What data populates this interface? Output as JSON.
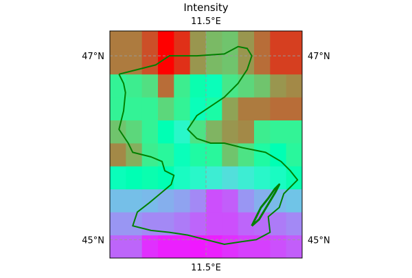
{
  "title": "Intensity",
  "chart_data": {
    "type": "heatmap",
    "title": "Intensity",
    "colormap": "rainbow",
    "value_range": [
      0,
      1
    ],
    "x_ticks": [
      {
        "value": 11.5,
        "label": "11.5°E"
      }
    ],
    "y_ticks": [
      {
        "value": 47,
        "label": "47°N"
      },
      {
        "value": 45,
        "label": "45°N"
      }
    ],
    "grid": "dashed gray",
    "extent": {
      "lon": [
        10.45,
        12.55
      ],
      "lat": [
        44.8,
        47.27
      ]
    },
    "cells": {
      "lon_edges": [
        10.45,
        10.625,
        10.8,
        10.975,
        11.15,
        11.325,
        11.5,
        11.675,
        11.85,
        12.025,
        12.2,
        12.375,
        12.55
      ],
      "lat_edges": [
        44.8,
        45.05,
        45.3,
        45.55,
        45.8,
        46.05,
        46.3,
        46.55,
        46.8,
        47.05,
        47.27
      ],
      "values": [
        [
          0.13,
          0.13,
          0.06,
          0.04,
          0.04,
          0.03,
          0.04,
          0.06,
          0.08,
          0.08,
          0.1,
          0.12
        ],
        [
          0.2,
          0.2,
          0.18,
          0.18,
          0.16,
          0.13,
          0.1,
          0.1,
          0.13,
          0.14,
          0.16,
          0.18
        ],
        [
          0.27,
          0.27,
          0.26,
          0.24,
          0.22,
          0.18,
          0.1,
          0.12,
          0.2,
          0.24,
          0.26,
          0.28
        ],
        [
          0.48,
          0.5,
          0.52,
          0.5,
          0.45,
          0.42,
          0.38,
          0.34,
          0.38,
          0.42,
          0.45,
          0.52
        ],
        [
          0.82,
          0.76,
          0.62,
          0.58,
          0.48,
          0.56,
          0.58,
          0.72,
          0.65,
          0.56,
          0.5,
          0.58
        ],
        [
          0.72,
          0.68,
          0.6,
          0.5,
          0.42,
          0.65,
          0.75,
          0.8,
          0.82,
          0.62,
          0.6,
          0.6
        ],
        [
          0.6,
          0.6,
          0.6,
          0.68,
          0.6,
          0.48,
          0.55,
          0.78,
          0.84,
          0.84,
          0.86,
          0.86
        ],
        [
          0.6,
          0.62,
          0.66,
          0.86,
          0.62,
          0.52,
          0.48,
          0.64,
          0.68,
          0.72,
          0.8,
          0.82
        ],
        [
          0.84,
          0.84,
          0.9,
          1.0,
          0.94,
          0.8,
          0.74,
          0.72,
          0.8,
          0.86,
          0.92,
          0.92
        ],
        [
          0.84,
          0.84,
          0.9,
          1.0,
          0.94,
          0.8,
          0.74,
          0.72,
          0.8,
          0.86,
          0.92,
          0.92
        ]
      ]
    },
    "region_outline": [
      [
        10.55,
        46.8
      ],
      [
        10.6,
        46.7
      ],
      [
        10.62,
        46.6
      ],
      [
        10.6,
        46.4
      ],
      [
        10.55,
        46.2
      ],
      [
        10.65,
        46.05
      ],
      [
        10.7,
        45.95
      ],
      [
        10.9,
        45.9
      ],
      [
        11.02,
        45.85
      ],
      [
        11.05,
        45.75
      ],
      [
        11.15,
        45.7
      ],
      [
        11.12,
        45.6
      ],
      [
        11.0,
        45.5
      ],
      [
        10.88,
        45.4
      ],
      [
        10.75,
        45.3
      ],
      [
        10.7,
        45.15
      ],
      [
        10.9,
        45.1
      ],
      [
        11.1,
        45.08
      ],
      [
        11.3,
        45.05
      ],
      [
        11.5,
        45.0
      ],
      [
        11.7,
        44.95
      ],
      [
        11.9,
        44.98
      ],
      [
        12.05,
        45.0
      ],
      [
        12.2,
        45.08
      ],
      [
        12.18,
        45.25
      ],
      [
        12.3,
        45.35
      ],
      [
        12.35,
        45.5
      ],
      [
        12.45,
        45.6
      ],
      [
        12.5,
        45.65
      ],
      [
        12.42,
        45.75
      ],
      [
        12.32,
        45.85
      ],
      [
        12.15,
        45.95
      ],
      [
        11.9,
        46.0
      ],
      [
        11.7,
        46.05
      ],
      [
        11.55,
        46.05
      ],
      [
        11.4,
        46.1
      ],
      [
        11.3,
        46.2
      ],
      [
        11.4,
        46.35
      ],
      [
        11.55,
        46.45
      ],
      [
        11.7,
        46.55
      ],
      [
        11.85,
        46.7
      ],
      [
        11.95,
        46.85
      ],
      [
        12.0,
        47.0
      ],
      [
        11.95,
        47.08
      ],
      [
        11.85,
        47.1
      ],
      [
        11.7,
        47.02
      ],
      [
        11.4,
        47.0
      ],
      [
        11.1,
        47.0
      ],
      [
        10.95,
        46.9
      ],
      [
        10.75,
        46.85
      ],
      [
        10.55,
        46.8
      ]
    ],
    "lagoon_outline": [
      [
        12.0,
        45.15
      ],
      [
        12.05,
        45.25
      ],
      [
        12.1,
        45.35
      ],
      [
        12.18,
        45.45
      ],
      [
        12.25,
        45.55
      ],
      [
        12.3,
        45.6
      ],
      [
        12.26,
        45.52
      ],
      [
        12.2,
        45.42
      ],
      [
        12.14,
        45.32
      ],
      [
        12.08,
        45.22
      ],
      [
        12.0,
        45.15
      ]
    ]
  }
}
